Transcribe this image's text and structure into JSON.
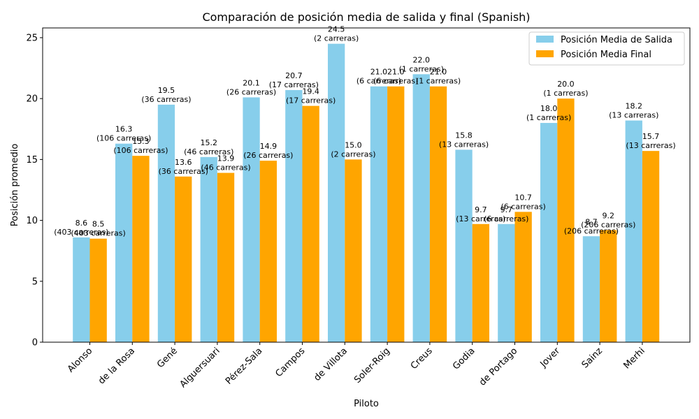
{
  "chart_data": {
    "type": "bar",
    "title": "Comparación de posición media de salida y final (Spanish)",
    "xlabel": "Piloto",
    "ylabel": "Posición promedio",
    "ylim": [
      0,
      25.8
    ],
    "yticks": [
      0,
      5,
      10,
      15,
      20,
      25
    ],
    "legend_position": "top-right",
    "grid": false,
    "categories": [
      "Alonso",
      "de la Rosa",
      "Gené",
      "Alguersuari",
      "Pérez-Sala",
      "Campos",
      "de Villota",
      "Soler-Roig",
      "Creus",
      "Godia",
      "de Portago",
      "Jover",
      "Sainz",
      "Merhi"
    ],
    "races_labels": [
      "(403 carreras)",
      "(106 carreras)",
      "(36 carreras)",
      "(46 carreras)",
      "(26 carreras)",
      "(17 carreras)",
      "(2 carreras)",
      "(6 carreras)",
      "(1 carreras)",
      "(13 carreras)",
      "(6 carreras)",
      "(1 carreras)",
      "(206 carreras)",
      "(13 carreras)"
    ],
    "series": [
      {
        "name": "Posición Media de Salida",
        "color": "#87ceeb",
        "values": [
          8.6,
          16.3,
          19.5,
          15.2,
          20.1,
          20.7,
          24.5,
          21.0,
          22.0,
          15.8,
          9.7,
          18.0,
          8.7,
          18.2
        ]
      },
      {
        "name": "Posición Media Final",
        "color": "#ffa500",
        "values": [
          8.5,
          15.3,
          13.6,
          13.9,
          14.9,
          19.4,
          15.0,
          21.0,
          21.0,
          9.7,
          10.7,
          20.0,
          9.2,
          15.7
        ]
      }
    ]
  }
}
